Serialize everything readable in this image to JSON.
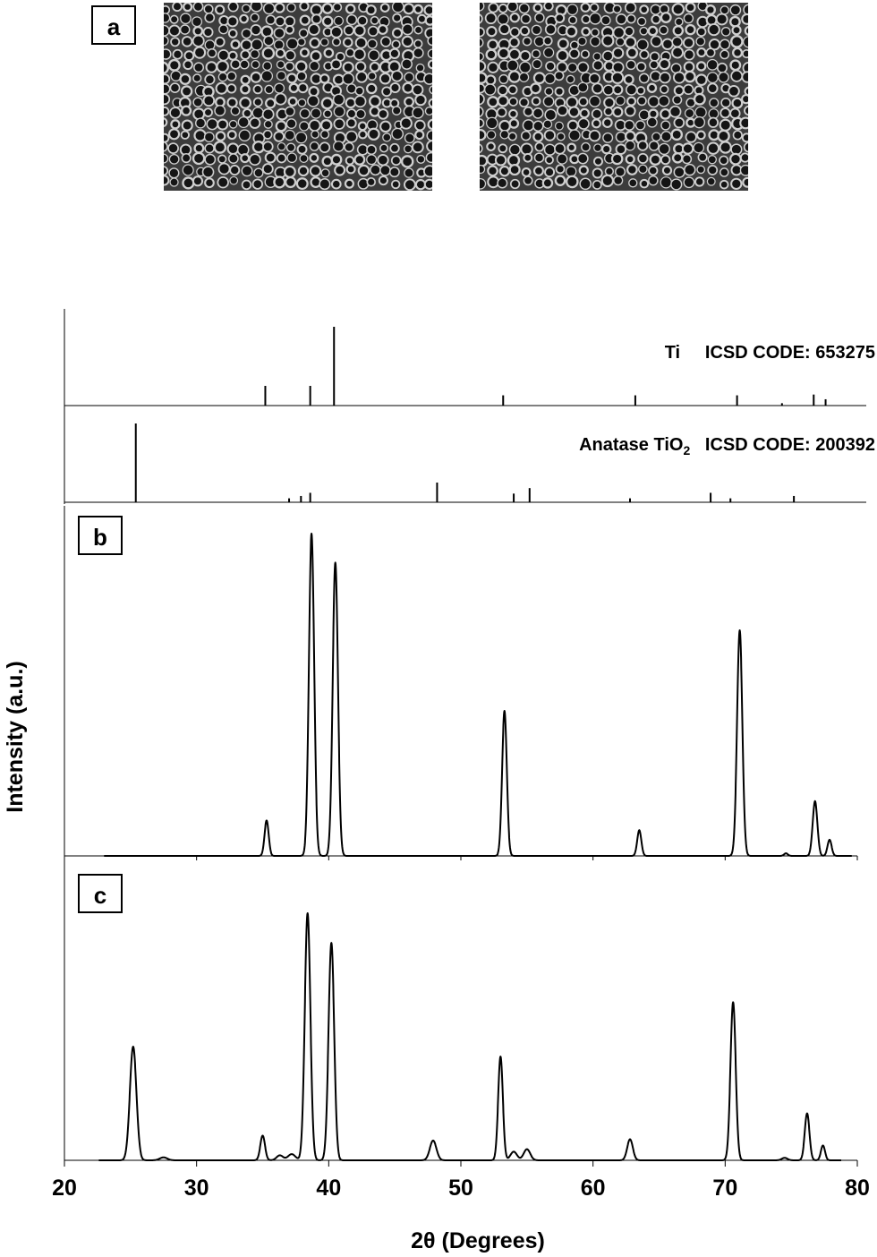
{
  "panel_labels": {
    "a": "a",
    "b": "b",
    "c": "c"
  },
  "references": {
    "ti": {
      "phase": "Ti",
      "code": "ICSD CODE: 653275",
      "peaks": [
        {
          "x": 35.2,
          "h": 0.25
        },
        {
          "x": 38.6,
          "h": 0.25
        },
        {
          "x": 40.4,
          "h": 1.0
        },
        {
          "x": 53.2,
          "h": 0.13
        },
        {
          "x": 63.2,
          "h": 0.13
        },
        {
          "x": 70.9,
          "h": 0.13
        },
        {
          "x": 74.3,
          "h": 0.03
        },
        {
          "x": 76.7,
          "h": 0.14
        },
        {
          "x": 77.6,
          "h": 0.08
        }
      ]
    },
    "anatase": {
      "phase": "Anatase TiO",
      "phase_sub": "2",
      "code": "ICSD CODE: 200392",
      "peaks": [
        {
          "x": 25.4,
          "h": 1.0
        },
        {
          "x": 37.0,
          "h": 0.05
        },
        {
          "x": 37.9,
          "h": 0.08
        },
        {
          "x": 38.6,
          "h": 0.12
        },
        {
          "x": 48.2,
          "h": 0.25
        },
        {
          "x": 54.0,
          "h": 0.11
        },
        {
          "x": 55.2,
          "h": 0.18
        },
        {
          "x": 62.8,
          "h": 0.05
        },
        {
          "x": 68.9,
          "h": 0.12
        },
        {
          "x": 70.4,
          "h": 0.05
        },
        {
          "x": 75.2,
          "h": 0.08
        }
      ]
    }
  },
  "chart_data": {
    "type": "line",
    "xlabel": "2θ (Degrees)",
    "ylabel": "Intensity (a.u.)",
    "xlim": [
      20,
      80
    ],
    "xticks": [
      "20",
      "30",
      "40",
      "50",
      "60",
      "70",
      "80"
    ],
    "series": [
      {
        "panel": "b",
        "x_range": [
          23,
          79.6
        ],
        "peaks": [
          {
            "x": 35.3,
            "h": 0.11,
            "w": 0.22
          },
          {
            "x": 38.7,
            "h": 1.0,
            "w": 0.28
          },
          {
            "x": 40.5,
            "h": 0.91,
            "w": 0.28
          },
          {
            "x": 53.3,
            "h": 0.45,
            "w": 0.25
          },
          {
            "x": 63.5,
            "h": 0.08,
            "w": 0.22
          },
          {
            "x": 71.1,
            "h": 0.7,
            "w": 0.28
          },
          {
            "x": 76.8,
            "h": 0.17,
            "w": 0.25
          },
          {
            "x": 77.9,
            "h": 0.05,
            "w": 0.22
          },
          {
            "x": 74.6,
            "h": 0.008,
            "w": 0.2
          }
        ]
      },
      {
        "panel": "c",
        "x_range": [
          22.6,
          78.8
        ],
        "peaks": [
          {
            "x": 25.2,
            "h": 0.46,
            "w": 0.35
          },
          {
            "x": 27.5,
            "h": 0.012,
            "w": 0.4
          },
          {
            "x": 35.0,
            "h": 0.1,
            "w": 0.25
          },
          {
            "x": 36.3,
            "h": 0.02,
            "w": 0.35
          },
          {
            "x": 37.2,
            "h": 0.025,
            "w": 0.4
          },
          {
            "x": 38.4,
            "h": 1.0,
            "w": 0.3
          },
          {
            "x": 40.2,
            "h": 0.88,
            "w": 0.3
          },
          {
            "x": 47.9,
            "h": 0.08,
            "w": 0.35
          },
          {
            "x": 53.0,
            "h": 0.42,
            "w": 0.25
          },
          {
            "x": 54.0,
            "h": 0.035,
            "w": 0.35
          },
          {
            "x": 55.0,
            "h": 0.045,
            "w": 0.35
          },
          {
            "x": 62.8,
            "h": 0.085,
            "w": 0.3
          },
          {
            "x": 70.6,
            "h": 0.64,
            "w": 0.28
          },
          {
            "x": 76.2,
            "h": 0.19,
            "w": 0.25
          },
          {
            "x": 77.4,
            "h": 0.06,
            "w": 0.22
          },
          {
            "x": 74.5,
            "h": 0.01,
            "w": 0.3
          }
        ]
      }
    ]
  }
}
